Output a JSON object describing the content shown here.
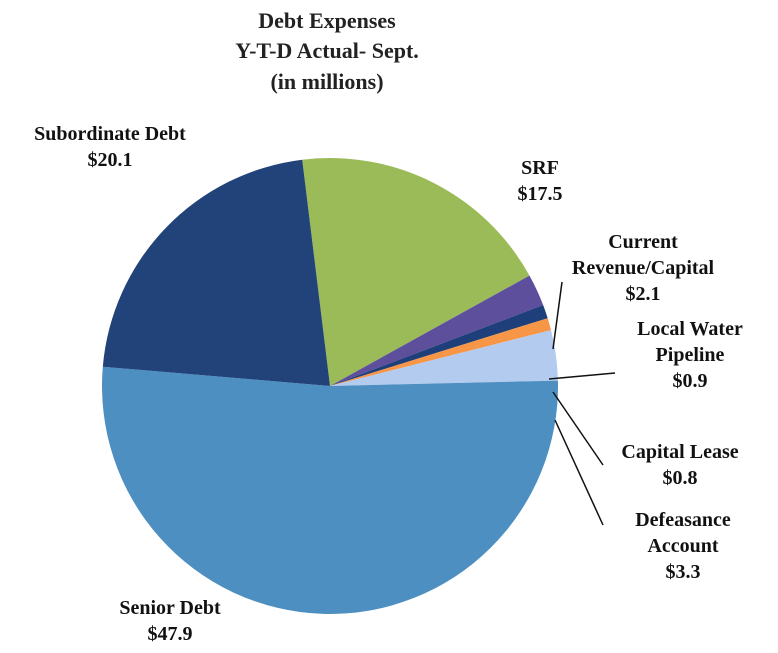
{
  "chart_data": {
    "type": "pie",
    "title": [
      "Debt Expenses",
      "Y-T-D Actual- Sept.",
      "(in millions)"
    ],
    "slices": [
      {
        "name": "SRF",
        "label_lines": [
          "SRF"
        ],
        "value_label": "$17.5",
        "value": 17.5,
        "color": "#9bbb59"
      },
      {
        "name": "Current Revenue/Capital",
        "label_lines": [
          "Current",
          "Revenue/Capital"
        ],
        "value_label": "$2.1",
        "value": 2.1,
        "color": "#5d4f9c"
      },
      {
        "name": "Local Water Pipeline",
        "label_lines": [
          "Local Water",
          "Pipeline"
        ],
        "value_label": "$0.9",
        "value": 0.9,
        "color": "#1f3f7a"
      },
      {
        "name": "Capital Lease",
        "label_lines": [
          "Capital Lease"
        ],
        "value_label": "$0.8",
        "value": 0.8,
        "color": "#f79646"
      },
      {
        "name": "Defeasance Account",
        "label_lines": [
          "Defeasance",
          "Account"
        ],
        "value_label": "$3.3",
        "value": 3.3,
        "color": "#b3cbef"
      },
      {
        "name": "Senior Debt",
        "label_lines": [
          "Senior Debt"
        ],
        "value_label": "$47.9",
        "value": 47.9,
        "color": "#4c8fc0"
      },
      {
        "name": "Subordinate Debt",
        "label_lines": [
          "Subordinate Debt"
        ],
        "value_label": "$20.1",
        "value": 20.1,
        "color": "#22427a"
      }
    ]
  }
}
